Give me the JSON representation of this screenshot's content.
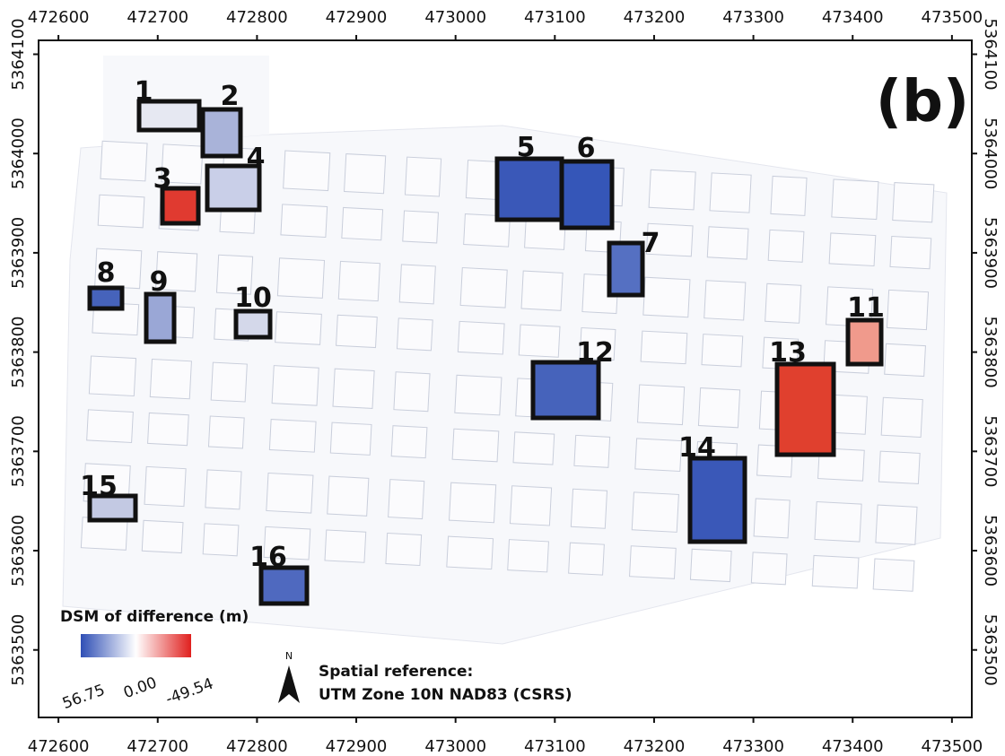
{
  "map": {
    "panel_label": "(b)",
    "xlim": [
      472580,
      473520
    ],
    "ylim": [
      5363432,
      5364114
    ],
    "xticks": [
      472600,
      472700,
      472800,
      472900,
      473000,
      473100,
      473200,
      473300,
      473400,
      473500
    ],
    "yticks": [
      5363500,
      5363600,
      5363700,
      5363800,
      5363900,
      5364000,
      5364100
    ],
    "regions": [
      "1",
      "2",
      "3",
      "4",
      "5",
      "6",
      "7",
      "8",
      "9",
      "10",
      "11",
      "12",
      "13",
      "14",
      "15",
      "16"
    ],
    "legend": {
      "title": "DSM of difference (m)",
      "labels": [
        "56.75",
        "0.00",
        "-49.54"
      ],
      "colors": [
        "#2f4fb5",
        "#ffffff",
        "#e0201e"
      ]
    },
    "north": "N",
    "spatial_reference": [
      "Spatial reference:",
      "UTM Zone 10N NAD83 (CSRS)"
    ]
  }
}
